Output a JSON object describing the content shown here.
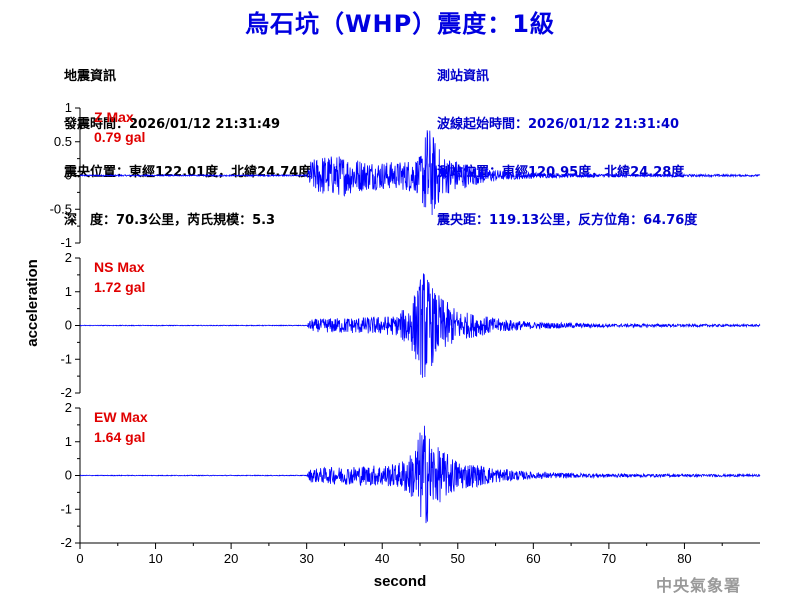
{
  "header": {
    "title": "烏石坑（WHP）震度：1級"
  },
  "quake_info": {
    "heading": "地震資訊",
    "origin_time": "發震時間：2026/01/12 21:31:49",
    "epicenter": "震央位置：東經122.01度，北緯24.74度",
    "depth_magnitude": "深　度：70.3公里，芮氏規模：5.3"
  },
  "station_info": {
    "heading": "測站資訊",
    "wave_start": "波線起始時間：2026/01/12 21:31:40",
    "location": "測站位置：東經120.95度，北緯24.28度",
    "distance_azimuth": "震央距：119.13公里，反方位角：64.76度"
  },
  "footer": {
    "agency": "中央氣象署"
  },
  "colors": {
    "title": "#0000e0",
    "trace": "#0000ff",
    "max_label": "#e00000",
    "station_info": "#0000cc"
  },
  "chart_data": {
    "type": "line",
    "xlabel": "second",
    "ylabel": "acceleration",
    "xlim": [
      0,
      90
    ],
    "x_ticks": [
      0,
      10,
      20,
      30,
      40,
      50,
      60,
      70,
      80
    ],
    "p_arrival_s": 30.5,
    "panels": [
      {
        "component": "Z",
        "max_label": "Z Max",
        "max_value": "0.79 gal",
        "ylim": [
          -1,
          1
        ],
        "y_ticks": [
          1,
          0.5,
          0,
          -0.5,
          -1
        ],
        "y_tick_labels": [
          "1",
          "0.5",
          "0",
          "-0.5",
          "-1"
        ],
        "envelope": [
          [
            0,
            0.01
          ],
          [
            30,
            0.01
          ],
          [
            30.5,
            0.22
          ],
          [
            32,
            0.3
          ],
          [
            35,
            0.3
          ],
          [
            38,
            0.22
          ],
          [
            42,
            0.2
          ],
          [
            45,
            0.28
          ],
          [
            46,
            0.79
          ],
          [
            48,
            0.3
          ],
          [
            52,
            0.15
          ],
          [
            56,
            0.07
          ],
          [
            62,
            0.035
          ],
          [
            70,
            0.02
          ],
          [
            90,
            0.014
          ]
        ]
      },
      {
        "component": "NS",
        "max_label": "NS Max",
        "max_value": "1.72 gal",
        "ylim": [
          -2,
          2
        ],
        "y_ticks": [
          2,
          1,
          0,
          -1,
          -2
        ],
        "y_tick_labels": [
          "2",
          "1",
          "0",
          "-1",
          "-2"
        ],
        "envelope": [
          [
            0,
            0.01
          ],
          [
            30,
            0.01
          ],
          [
            30.5,
            0.18
          ],
          [
            33,
            0.22
          ],
          [
            38,
            0.25
          ],
          [
            42,
            0.3
          ],
          [
            44,
            0.8
          ],
          [
            45.5,
            1.72
          ],
          [
            47,
            1.0
          ],
          [
            50,
            0.45
          ],
          [
            55,
            0.22
          ],
          [
            60,
            0.1
          ],
          [
            70,
            0.05
          ],
          [
            90,
            0.03
          ]
        ]
      },
      {
        "component": "EW",
        "max_label": "EW Max",
        "max_value": "1.64 gal",
        "ylim": [
          -2,
          2
        ],
        "y_ticks": [
          2,
          1,
          0,
          -1,
          -2
        ],
        "y_tick_labels": [
          "2",
          "1",
          "0",
          "-1",
          "-2"
        ],
        "envelope": [
          [
            0,
            0.01
          ],
          [
            30,
            0.01
          ],
          [
            30.5,
            0.2
          ],
          [
            33,
            0.25
          ],
          [
            38,
            0.3
          ],
          [
            42,
            0.35
          ],
          [
            44,
            0.7
          ],
          [
            45.5,
            1.64
          ],
          [
            47,
            0.9
          ],
          [
            50,
            0.45
          ],
          [
            55,
            0.22
          ],
          [
            60,
            0.1
          ],
          [
            70,
            0.05
          ],
          [
            90,
            0.03
          ]
        ]
      }
    ]
  }
}
